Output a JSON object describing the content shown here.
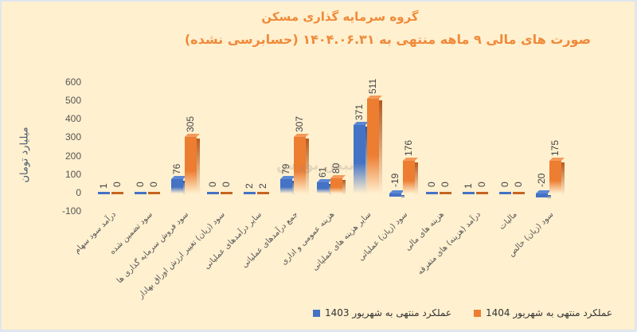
{
  "chart_data": {
    "type": "bar",
    "title": "گروه سرمایه گذاری مسکن",
    "subtitle": "صورت های مالی ۹ ماهه منتهی به ۱۴۰۴.۰۶.۳۱ (حسابرسی نشده)",
    "xlabel": "",
    "ylabel": "میلیارد تومان",
    "ylim": [
      -100,
      600
    ],
    "yticks": [
      600,
      500,
      400,
      300,
      200,
      100,
      0,
      -100
    ],
    "grid": false,
    "legend_position": "bottom",
    "categories": [
      "درآمد سود سهام",
      "سود تضمین شده",
      "سود فروش سرمایه گذاری ها",
      "سود (زیان) تغییر ارزش اوراق بهادار",
      "سایر درآمدهای عملیاتی",
      "جمع درآمدهای عملیاتی",
      "هزینه عمومی و اداری",
      "سایر هزینه های عملیاتی",
      "سود (زیان) عملیاتی",
      "هزینه های مالی",
      "درآمد (هزینه) های متفرقه",
      "مالیات",
      "سود (زیان) خالص"
    ],
    "series": [
      {
        "name": "عملکرد منتهی به شهریور 1403",
        "color": "#4472c4",
        "values": [
          1,
          0,
          76,
          0,
          2,
          79,
          61,
          371,
          -19,
          0,
          1,
          0,
          -20
        ]
      },
      {
        "name": "عملکرد منتهی به شهریور 1404",
        "color": "#ed7d31",
        "values": [
          0,
          0,
          305,
          0,
          2,
          307,
          80,
          511,
          176,
          0,
          0,
          0,
          175
        ]
      }
    ]
  },
  "watermark": "نبض بورس"
}
